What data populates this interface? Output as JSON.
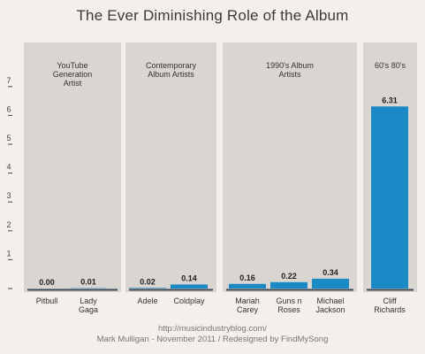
{
  "title": "The Ever Diminishing Role of the Album",
  "credits": {
    "line1": "http://musicindustryblog.com/",
    "line2": "Mark Mulligan - November 2011 / Redesigned by FindMySong"
  },
  "colors": {
    "background": "#f3efeb",
    "panel": "#d9d5d1",
    "bar": "#1a8ac6",
    "axis": "#3d4a57"
  },
  "chart_data": {
    "type": "bar",
    "title": "The Ever Diminishing Role of the Album",
    "xlabel": "",
    "ylabel": "",
    "ylim": [
      0,
      7
    ],
    "yticks": [
      1,
      2,
      3,
      4,
      5,
      6,
      7
    ],
    "grid": false,
    "groups": [
      {
        "name": "YouTube Generation Artist",
        "label_lines": [
          "YouTube",
          "Generation",
          "Artist"
        ],
        "categories": [
          {
            "label_lines": [
              "Pitbull"
            ],
            "value": 0.0,
            "value_label": "0.00"
          },
          {
            "label_lines": [
              "Lady",
              "Gaga"
            ],
            "value": 0.01,
            "value_label": "0.01"
          }
        ]
      },
      {
        "name": "Contemporary Album Artists",
        "label_lines": [
          "Contemporary",
          "Album Artists"
        ],
        "categories": [
          {
            "label_lines": [
              "Adele"
            ],
            "value": 0.02,
            "value_label": "0.02"
          },
          {
            "label_lines": [
              "Coldplay"
            ],
            "value": 0.14,
            "value_label": "0.14"
          }
        ]
      },
      {
        "name": "1990's Album Artists",
        "label_lines": [
          "1990's Album",
          "Artists"
        ],
        "categories": [
          {
            "label_lines": [
              "Mariah",
              "Carey"
            ],
            "value": 0.16,
            "value_label": "0.16"
          },
          {
            "label_lines": [
              "Guns n",
              "Roses"
            ],
            "value": 0.22,
            "value_label": "0.22"
          },
          {
            "label_lines": [
              "Michael",
              "Jackson"
            ],
            "value": 0.34,
            "value_label": "0.34"
          }
        ]
      },
      {
        "name": "60's 80's",
        "label_lines": [
          "60's 80's"
        ],
        "categories": [
          {
            "label_lines": [
              "Cliff",
              "Richards"
            ],
            "value": 6.31,
            "value_label": "6.31"
          }
        ]
      }
    ]
  }
}
